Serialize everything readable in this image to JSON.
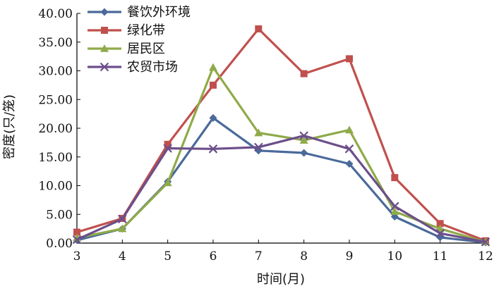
{
  "chart_data": {
    "type": "line",
    "xlabel": "时间(月)",
    "ylabel": "密度(只/笼)",
    "x": [
      3,
      4,
      5,
      6,
      7,
      8,
      9,
      10,
      11,
      12
    ],
    "x_tick_labels": [
      "3",
      "4",
      "5",
      "6",
      "7",
      "8",
      "9",
      "10",
      "11",
      "12"
    ],
    "ylim": [
      0,
      40
    ],
    "y_ticks": [
      0,
      5,
      10,
      15,
      20,
      25,
      30,
      35,
      40
    ],
    "y_tick_labels": [
      "0.00",
      "5.00",
      "10.00",
      "15.00",
      "20.00",
      "25.00",
      "30.00",
      "35.00",
      "40.00"
    ],
    "grid": false,
    "legend_position": "top-left",
    "series": [
      {
        "name": "餐饮外环境",
        "marker": "diamond",
        "color": "#4a6a9a",
        "values": [
          0.5,
          2.5,
          10.7,
          21.8,
          16.1,
          15.7,
          13.8,
          4.6,
          1.0,
          0.1
        ]
      },
      {
        "name": "绿化带",
        "marker": "square",
        "color": "#c0504d",
        "values": [
          1.9,
          4.3,
          17.2,
          27.5,
          37.3,
          29.5,
          32.1,
          11.4,
          3.4,
          0.4
        ]
      },
      {
        "name": "居民区",
        "marker": "triangle",
        "color": "#8faa4a",
        "values": [
          0.9,
          2.5,
          10.5,
          30.6,
          19.2,
          17.9,
          19.7,
          5.5,
          2.5,
          0.2
        ]
      },
      {
        "name": "农贸市场",
        "marker": "x",
        "color": "#6c4f8a",
        "values": [
          0.6,
          4.2,
          16.5,
          16.4,
          16.7,
          18.7,
          16.4,
          6.4,
          1.7,
          0.2
        ]
      }
    ]
  }
}
